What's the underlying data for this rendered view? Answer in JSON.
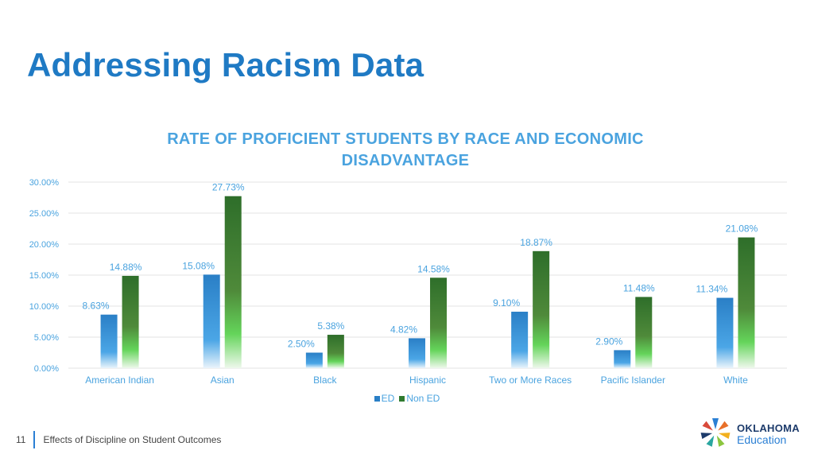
{
  "slide": {
    "title": "Addressing Racism Data",
    "footer_page": "11",
    "footer_text": "Effects of Discipline on Student Outcomes",
    "logo_line1": "OKLAHOMA",
    "logo_line2": "Education"
  },
  "colors": {
    "title": "#1f7ac4",
    "chart_title": "#4aa3df",
    "ed_series": "#2a7fc6",
    "non_ed_series": "#2f7a2f",
    "label_text": "#4aa3df"
  },
  "chart_data": {
    "type": "bar",
    "title": "RATE OF PROFICIENT STUDENTS BY RACE AND ECONOMIC DISADVANTAGE",
    "categories": [
      "American Indian",
      "Asian",
      "Black",
      "Hispanic",
      "Two or More Races",
      "Pacific Islander",
      "White"
    ],
    "series": [
      {
        "name": "ED",
        "values": [
          8.63,
          15.08,
          2.5,
          4.82,
          9.1,
          2.9,
          11.34
        ],
        "labels": [
          "8.63%",
          "15.08%",
          "2.50%",
          "4.82%",
          "9.10%",
          "2.90%",
          "11.34%"
        ]
      },
      {
        "name": "Non ED",
        "values": [
          14.88,
          27.73,
          5.38,
          14.58,
          18.87,
          11.48,
          21.08
        ],
        "labels": [
          "14.88%",
          "27.73%",
          "5.38%",
          "14.58%",
          "18.87%",
          "11.48%",
          "21.08%"
        ]
      }
    ],
    "ylim": [
      0,
      30
    ],
    "yticks": [
      0,
      5,
      10,
      15,
      20,
      25,
      30
    ],
    "ytick_labels": [
      "0.00%",
      "5.00%",
      "10.00%",
      "15.00%",
      "20.00%",
      "25.00%",
      "30.00%"
    ],
    "grid": true,
    "legend": "bottom"
  }
}
